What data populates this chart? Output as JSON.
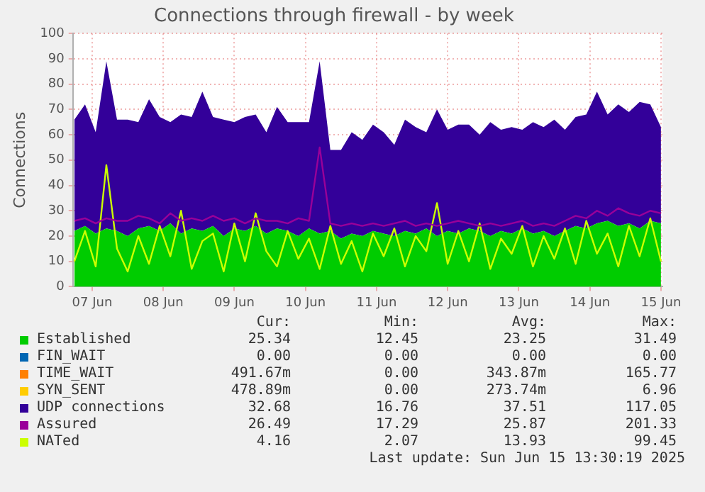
{
  "chart_data": {
    "type": "area",
    "title": "Connections through firewall - by week",
    "ylabel": "Connections",
    "stacked": true,
    "grid": true,
    "legend": "bottom",
    "marker": "none",
    "x": [
      "2025-06-06T18:00",
      "2025-06-06T21:36",
      "2025-06-07T01:12",
      "2025-06-07T04:48",
      "2025-06-07T08:24",
      "2025-06-07T12:00",
      "2025-06-07T15:36",
      "2025-06-07T19:12",
      "2025-06-07T22:48",
      "2025-06-08T02:24",
      "2025-06-08T06:00",
      "2025-06-08T09:36",
      "2025-06-08T13:12",
      "2025-06-08T16:48",
      "2025-06-08T20:24",
      "2025-06-09T00:00",
      "2025-06-09T03:36",
      "2025-06-09T07:12",
      "2025-06-09T10:48",
      "2025-06-09T14:24",
      "2025-06-09T18:00",
      "2025-06-09T21:36",
      "2025-06-10T01:12",
      "2025-06-10T04:48",
      "2025-06-10T08:24",
      "2025-06-10T12:00",
      "2025-06-10T15:36",
      "2025-06-10T19:12",
      "2025-06-10T22:48",
      "2025-06-11T02:24",
      "2025-06-11T06:00",
      "2025-06-11T09:36",
      "2025-06-11T13:12",
      "2025-06-11T16:48",
      "2025-06-11T20:24",
      "2025-06-12T00:00",
      "2025-06-12T03:36",
      "2025-06-12T07:12",
      "2025-06-12T10:48",
      "2025-06-12T14:24",
      "2025-06-12T18:00",
      "2025-06-12T21:36",
      "2025-06-13T01:12",
      "2025-06-13T04:48",
      "2025-06-13T08:24",
      "2025-06-13T12:00",
      "2025-06-13T15:36",
      "2025-06-13T19:12",
      "2025-06-13T22:48",
      "2025-06-14T02:24",
      "2025-06-14T06:00",
      "2025-06-14T09:36",
      "2025-06-14T13:12",
      "2025-06-14T16:48",
      "2025-06-14T20:24",
      "2025-06-15T00:00"
    ],
    "xlim": [
      "2025-06-06T17:30",
      "2025-06-15T00:30"
    ],
    "xticks": [
      {
        "value": "2025-06-07",
        "label": "07 Jun"
      },
      {
        "value": "2025-06-08",
        "label": "08 Jun"
      },
      {
        "value": "2025-06-09",
        "label": "09 Jun"
      },
      {
        "value": "2025-06-10",
        "label": "10 Jun"
      },
      {
        "value": "2025-06-11",
        "label": "11 Jun"
      },
      {
        "value": "2025-06-12",
        "label": "12 Jun"
      },
      {
        "value": "2025-06-13",
        "label": "13 Jun"
      },
      {
        "value": "2025-06-14",
        "label": "14 Jun"
      },
      {
        "value": "2025-06-15",
        "label": "15 Jun"
      }
    ],
    "ylim": [
      0,
      100
    ],
    "yticks": [
      0,
      10,
      20,
      30,
      40,
      50,
      60,
      70,
      80,
      90,
      100
    ],
    "series": [
      {
        "name": "Established",
        "color": "#00cc00",
        "values": [
          22,
          24,
          21,
          23,
          22,
          20,
          23,
          24,
          22,
          25,
          21,
          23,
          22,
          24,
          20,
          23,
          22,
          24,
          21,
          23,
          22,
          20,
          23,
          21,
          22,
          19,
          21,
          20,
          22,
          21,
          20,
          22,
          21,
          23,
          20,
          22,
          21,
          23,
          22,
          20,
          22,
          21,
          23,
          21,
          22,
          20,
          22,
          24,
          23,
          25,
          26,
          24,
          25,
          23,
          26,
          25
        ]
      },
      {
        "name": "FIN_WAIT",
        "color": "#0066b3",
        "values": [
          null,
          null,
          null,
          null,
          null,
          null,
          null,
          null,
          null,
          null,
          null,
          null,
          null,
          null,
          null,
          null,
          null,
          null,
          null,
          null,
          null,
          null,
          null,
          null,
          null,
          null,
          null,
          null,
          null,
          null,
          null,
          null,
          null,
          null,
          null,
          null,
          null,
          null,
          null,
          null,
          null,
          null,
          null,
          null,
          null,
          null,
          null,
          null,
          null,
          null,
          null,
          null,
          null,
          null,
          null,
          null
        ]
      },
      {
        "name": "TIME_WAIT",
        "color": "#ff8000",
        "values": [
          null,
          null,
          null,
          null,
          null,
          null,
          null,
          null,
          null,
          null,
          null,
          null,
          null,
          null,
          null,
          null,
          null,
          null,
          null,
          null,
          null,
          null,
          null,
          null,
          null,
          null,
          null,
          null,
          null,
          null,
          null,
          null,
          null,
          null,
          null,
          null,
          null,
          null,
          null,
          null,
          null,
          null,
          null,
          null,
          null,
          null,
          null,
          null,
          null,
          null,
          null,
          null,
          null,
          null,
          null,
          null
        ]
      },
      {
        "name": "SYN_SENT",
        "color": "#ffcc00",
        "values": [
          null,
          null,
          null,
          null,
          null,
          null,
          null,
          null,
          null,
          null,
          null,
          null,
          null,
          null,
          null,
          null,
          null,
          null,
          null,
          null,
          null,
          null,
          null,
          null,
          null,
          null,
          null,
          null,
          null,
          null,
          null,
          null,
          null,
          null,
          null,
          null,
          null,
          null,
          null,
          null,
          null,
          null,
          null,
          null,
          null,
          null,
          null,
          null,
          null,
          null,
          null,
          null,
          null,
          null,
          null,
          null
        ]
      },
      {
        "name": "UDP connections",
        "color": "#330099",
        "values": [
          44,
          48,
          40,
          66,
          44,
          46,
          42,
          50,
          45,
          40,
          47,
          44,
          55,
          43,
          46,
          42,
          45,
          44,
          40,
          48,
          43,
          45,
          42,
          68,
          32,
          35,
          40,
          38,
          42,
          40,
          36,
          44,
          42,
          38,
          50,
          40,
          43,
          41,
          38,
          45,
          40,
          42,
          39,
          44,
          41,
          46,
          40,
          43,
          45,
          52,
          42,
          48,
          44,
          50,
          46,
          38
        ]
      },
      {
        "name": "Assured",
        "type": "line",
        "color": "#990099",
        "values": [
          26,
          27,
          25,
          27,
          26,
          26,
          28,
          27,
          25,
          29,
          26,
          27,
          26,
          28,
          26,
          27,
          25,
          27,
          26,
          26,
          25,
          27,
          26,
          55,
          25,
          24,
          25,
          24,
          25,
          24,
          25,
          26,
          24,
          25,
          24,
          25,
          26,
          25,
          24,
          25,
          24,
          25,
          26,
          24,
          25,
          24,
          26,
          28,
          27,
          30,
          28,
          31,
          29,
          28,
          30,
          29
        ]
      },
      {
        "name": "NATed",
        "type": "line",
        "color": "#ccff00",
        "values": [
          10,
          22,
          8,
          48,
          15,
          6,
          20,
          9,
          24,
          12,
          30,
          7,
          18,
          21,
          6,
          25,
          10,
          29,
          14,
          8,
          22,
          11,
          19,
          7,
          24,
          9,
          18,
          6,
          21,
          12,
          23,
          8,
          20,
          14,
          33,
          9,
          22,
          10,
          25,
          7,
          19,
          13,
          24,
          8,
          20,
          11,
          23,
          9,
          26,
          13,
          21,
          8,
          24,
          12,
          27,
          10
        ]
      }
    ],
    "annotations": [
      "Cur:",
      "Min:",
      "Avg:",
      "Max:",
      "25.34",
      "12.45",
      "23.25",
      "31.49",
      "0.00",
      "0.00",
      "0.00",
      "0.00",
      "491.67m",
      "0.00",
      "343.87m",
      "165.77",
      "478.89m",
      "0.00",
      "273.74m",
      "6.96",
      "32.68",
      "16.76",
      "37.51",
      "117.05",
      "26.49",
      "17.29",
      "25.87",
      "201.33",
      "4.16",
      "2.07",
      "13.93",
      "99.45",
      "Last update: Sun Jun 15 13:30:19 2025"
    ]
  }
}
